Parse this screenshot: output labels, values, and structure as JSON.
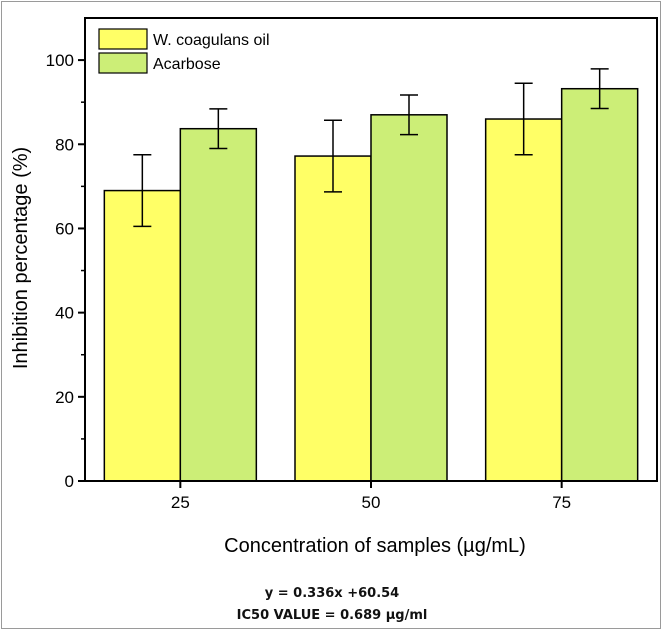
{
  "chart_data": {
    "type": "bar",
    "xlabel": "Concentration of samples (µg/mL)",
    "ylabel": "Inhibition percentage (%)",
    "categories": [
      "25",
      "50",
      "75"
    ],
    "ylim": [
      0,
      110
    ],
    "yticks": [
      0,
      20,
      40,
      60,
      80,
      100
    ],
    "grid": false,
    "legend_position": "top-left",
    "series": [
      {
        "name": "W. coagulans oil",
        "color": "#ffff66",
        "values": [
          69,
          77.2,
          86
        ],
        "errors": [
          8.5,
          8.5,
          8.5
        ]
      },
      {
        "name": "Acarbose",
        "color": "#ccee77",
        "values": [
          83.7,
          87,
          93.2
        ],
        "errors": [
          4.7,
          4.7,
          4.7
        ]
      }
    ]
  },
  "annotations": {
    "equation": "y = 0.336x +60.54",
    "ic50": "IC50 VALUE = 0.689 µg/ml"
  }
}
